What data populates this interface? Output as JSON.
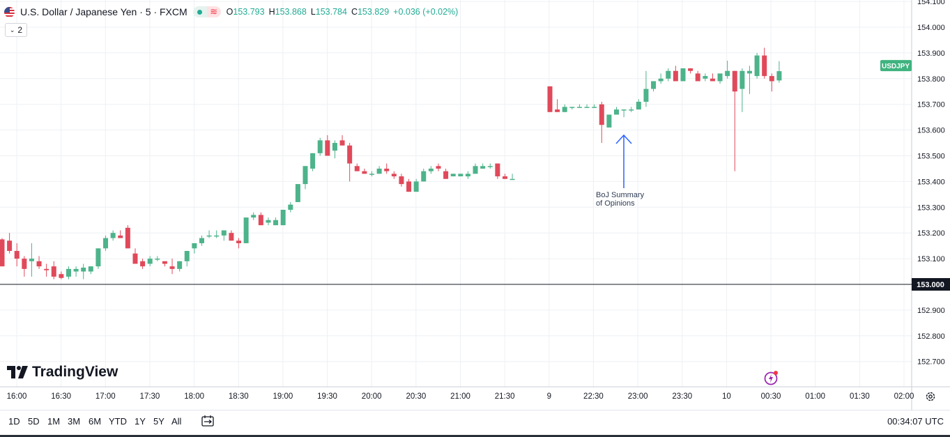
{
  "legend": {
    "symbol": "U.S. Dollar / Japanese Yen",
    "interval": "5",
    "exchange": "FXCM",
    "title_full": "U.S. Dollar / Japanese Yen · 5 · FXCM",
    "o_label": "O",
    "o_value": "153.793",
    "h_label": "H",
    "h_value": "153.868",
    "l_label": "L",
    "l_value": "153.784",
    "c_label": "C",
    "c_value": "153.829",
    "change": "+0.036 (+0.02%)",
    "wave_symbol": "≋"
  },
  "indicators_count": "2",
  "price_axis": {
    "ticks": [
      "154.100",
      "154.000",
      "153.900",
      "153.800",
      "153.700",
      "153.600",
      "153.500",
      "153.400",
      "153.300",
      "153.200",
      "153.100",
      "153.000",
      "152.900",
      "152.800",
      "152.700"
    ],
    "current_label": "USDJPY",
    "current_value": 153.829,
    "crosshair_label": "153.000",
    "crosshair_value": 153.0
  },
  "time_axis": {
    "labels": [
      "16:00",
      "16:30",
      "17:00",
      "17:30",
      "18:00",
      "18:30",
      "19:00",
      "19:30",
      "20:00",
      "20:30",
      "21:00",
      "21:30",
      "9",
      "22:30",
      "23:00",
      "23:30",
      "10",
      "00:30",
      "01:00",
      "01:30",
      "02:00"
    ]
  },
  "annotation": {
    "line1": "BoJ Summary",
    "line2": "of Opinions"
  },
  "branding": {
    "name": "TradingView"
  },
  "bottom_bar": {
    "timeframes": [
      "1D",
      "5D",
      "1M",
      "3M",
      "6M",
      "YTD",
      "1Y",
      "5Y",
      "All"
    ],
    "clock": "00:34:07 UTC"
  },
  "colors": {
    "up": "#26a69a",
    "down": "#ef5350",
    "up_candle": "#4db38a",
    "down_candle": "#e0495a",
    "grid": "#eef0f4",
    "crosshair": "#131722",
    "annotation_arrow": "#2962ff",
    "price_tag": "#3fb37f"
  },
  "chart_data": {
    "type": "candlestick",
    "title": "U.S. Dollar / Japanese Yen · 5 · FXCM",
    "xlabel": "",
    "ylabel": "",
    "ylim": [
      152.62,
      154.11
    ],
    "candles": [
      [
        153.175,
        153.18,
        153.07,
        153.07
      ],
      [
        153.17,
        153.2,
        153.12,
        153.13
      ],
      [
        153.13,
        153.16,
        153.07,
        153.1
      ],
      [
        153.1,
        153.11,
        153.03,
        153.06
      ],
      [
        153.09,
        153.16,
        153.03,
        153.1
      ],
      [
        153.09,
        153.11,
        153.06,
        153.07
      ],
      [
        153.06,
        153.08,
        153.03,
        153.055
      ],
      [
        153.07,
        153.09,
        153.02,
        153.03
      ],
      [
        153.04,
        153.05,
        153.02,
        153.025
      ],
      [
        153.03,
        153.07,
        153.02,
        153.06
      ],
      [
        153.05,
        153.07,
        153.03,
        153.06
      ],
      [
        153.05,
        153.08,
        153.02,
        153.065
      ],
      [
        153.05,
        153.07,
        153.04,
        153.07
      ],
      [
        153.07,
        153.14,
        153.06,
        153.14
      ],
      [
        153.14,
        153.19,
        153.13,
        153.18
      ],
      [
        153.18,
        153.21,
        153.17,
        153.2
      ],
      [
        153.19,
        153.21,
        153.18,
        153.18
      ],
      [
        153.22,
        153.23,
        153.14,
        153.14
      ],
      [
        153.12,
        153.14,
        153.08,
        153.08
      ],
      [
        153.09,
        153.1,
        153.06,
        153.07
      ],
      [
        153.08,
        153.11,
        153.07,
        153.1
      ],
      [
        153.1,
        153.11,
        153.09,
        153.1
      ],
      [
        153.09,
        153.09,
        153.07,
        153.08
      ],
      [
        153.07,
        153.1,
        153.04,
        153.06
      ],
      [
        153.06,
        153.09,
        153.05,
        153.09
      ],
      [
        153.09,
        153.13,
        153.07,
        153.13
      ],
      [
        153.14,
        153.16,
        153.12,
        153.16
      ],
      [
        153.16,
        153.19,
        153.15,
        153.18
      ],
      [
        153.19,
        153.21,
        153.18,
        153.19
      ],
      [
        153.19,
        153.21,
        153.18,
        153.19
      ],
      [
        153.19,
        153.21,
        153.17,
        153.21
      ],
      [
        153.2,
        153.21,
        153.17,
        153.17
      ],
      [
        153.17,
        153.18,
        153.14,
        153.16
      ],
      [
        153.16,
        153.26,
        153.16,
        153.26
      ],
      [
        153.26,
        153.28,
        153.25,
        153.27
      ],
      [
        153.27,
        153.28,
        153.23,
        153.23
      ],
      [
        153.24,
        153.26,
        153.23,
        153.25
      ],
      [
        153.23,
        153.26,
        153.23,
        153.25
      ],
      [
        153.23,
        153.29,
        153.23,
        153.29
      ],
      [
        153.29,
        153.32,
        153.28,
        153.31
      ],
      [
        153.32,
        153.39,
        153.32,
        153.39
      ],
      [
        153.39,
        153.46,
        153.37,
        153.46
      ],
      [
        153.45,
        153.51,
        153.44,
        153.51
      ],
      [
        153.51,
        153.57,
        153.5,
        153.56
      ],
      [
        153.56,
        153.58,
        153.5,
        153.5
      ],
      [
        153.52,
        153.56,
        153.49,
        153.55
      ],
      [
        153.56,
        153.58,
        153.54,
        153.54
      ],
      [
        153.54,
        153.55,
        153.4,
        153.47
      ],
      [
        153.46,
        153.47,
        153.44,
        153.44
      ],
      [
        153.44,
        153.45,
        153.43,
        153.43
      ],
      [
        153.43,
        153.44,
        153.42,
        153.43
      ],
      [
        153.43,
        153.46,
        153.43,
        153.45
      ],
      [
        153.45,
        153.47,
        153.43,
        153.44
      ],
      [
        153.43,
        153.44,
        153.41,
        153.42
      ],
      [
        153.42,
        153.43,
        153.38,
        153.39
      ],
      [
        153.4,
        153.41,
        153.36,
        153.36
      ],
      [
        153.36,
        153.41,
        153.36,
        153.4
      ],
      [
        153.4,
        153.45,
        153.4,
        153.44
      ],
      [
        153.44,
        153.46,
        153.43,
        153.45
      ],
      [
        153.46,
        153.47,
        153.44,
        153.45
      ],
      [
        153.44,
        153.45,
        153.41,
        153.41
      ],
      [
        153.42,
        153.43,
        153.42,
        153.43
      ],
      [
        153.42,
        153.43,
        153.42,
        153.43
      ],
      [
        153.42,
        153.44,
        153.41,
        153.43
      ],
      [
        153.43,
        153.47,
        153.43,
        153.46
      ],
      [
        153.45,
        153.47,
        153.45,
        153.46
      ],
      [
        153.46,
        153.47,
        153.45,
        153.46
      ],
      [
        153.47,
        153.47,
        153.41,
        153.42
      ],
      [
        153.42,
        153.43,
        153.41,
        153.41
      ],
      [
        153.41,
        153.43,
        153.41,
        153.41
      ],
      [
        153.77,
        153.77,
        153.67,
        153.67
      ],
      [
        153.68,
        153.72,
        153.67,
        153.67
      ],
      [
        153.67,
        153.7,
        153.67,
        153.69
      ],
      [
        153.69,
        153.69,
        153.68,
        153.69
      ],
      [
        153.69,
        153.7,
        153.69,
        153.69
      ],
      [
        153.69,
        153.7,
        153.69,
        153.69
      ],
      [
        153.69,
        153.7,
        153.69,
        153.69
      ],
      [
        153.7,
        153.71,
        153.55,
        153.62
      ],
      [
        153.61,
        153.66,
        153.61,
        153.66
      ],
      [
        153.66,
        153.69,
        153.66,
        153.68
      ],
      [
        153.68,
        153.68,
        153.65,
        153.68
      ],
      [
        153.68,
        153.69,
        153.67,
        153.68
      ],
      [
        153.68,
        153.72,
        153.68,
        153.71
      ],
      [
        153.71,
        153.83,
        153.69,
        153.76
      ],
      [
        153.76,
        153.79,
        153.75,
        153.79
      ],
      [
        153.79,
        153.82,
        153.78,
        153.8
      ],
      [
        153.8,
        153.84,
        153.79,
        153.83
      ],
      [
        153.83,
        153.85,
        153.79,
        153.79
      ],
      [
        153.79,
        153.84,
        153.79,
        153.84
      ],
      [
        153.84,
        153.84,
        153.82,
        153.83
      ],
      [
        153.82,
        153.83,
        153.79,
        153.79
      ],
      [
        153.8,
        153.82,
        153.79,
        153.81
      ],
      [
        153.8,
        153.82,
        153.79,
        153.79
      ],
      [
        153.79,
        153.81,
        153.78,
        153.82
      ],
      [
        153.81,
        153.87,
        153.8,
        153.83
      ],
      [
        153.83,
        153.83,
        153.44,
        153.75
      ],
      [
        153.76,
        153.84,
        153.67,
        153.83
      ],
      [
        153.82,
        153.85,
        153.74,
        153.83
      ],
      [
        153.81,
        153.9,
        153.8,
        153.89
      ],
      [
        153.89,
        153.92,
        153.8,
        153.81
      ],
      [
        153.81,
        153.82,
        153.75,
        153.79
      ],
      [
        153.793,
        153.868,
        153.784,
        153.829
      ]
    ]
  }
}
